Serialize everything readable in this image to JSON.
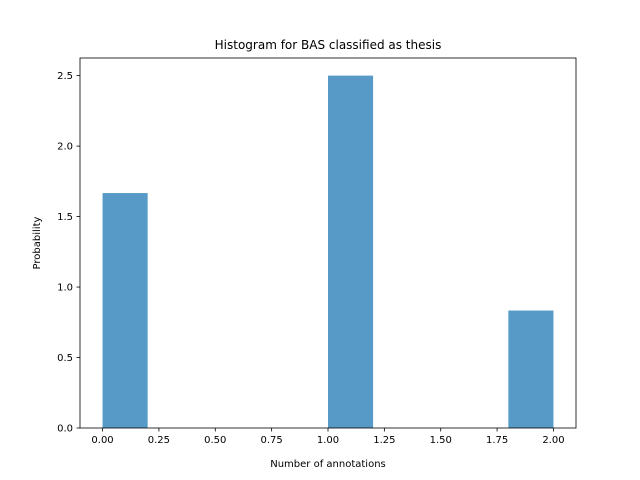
{
  "chart_data": {
    "type": "bar",
    "title": "Histogram for BAS classified as thesis",
    "xlabel": "Number of annotations",
    "ylabel": "Probability",
    "xlim": [
      -0.1,
      2.1
    ],
    "ylim": [
      0,
      2.625
    ],
    "xticks": [
      0.0,
      0.25,
      0.5,
      0.75,
      1.0,
      1.25,
      1.5,
      1.75,
      2.0
    ],
    "xtick_labels": [
      "0.00",
      "0.25",
      "0.50",
      "0.75",
      "1.00",
      "1.25",
      "1.50",
      "1.75",
      "2.00"
    ],
    "yticks": [
      0.0,
      0.5,
      1.0,
      1.5,
      2.0,
      2.5
    ],
    "ytick_labels": [
      "0.0",
      "0.5",
      "1.0",
      "1.5",
      "2.0",
      "2.5"
    ],
    "bins": [
      {
        "x0": 0.0,
        "x1": 0.2,
        "value": 1.6667
      },
      {
        "x0": 0.2,
        "x1": 0.4,
        "value": 0
      },
      {
        "x0": 0.4,
        "x1": 0.6,
        "value": 0
      },
      {
        "x0": 0.6,
        "x1": 0.8,
        "value": 0
      },
      {
        "x0": 0.8,
        "x1": 1.0,
        "value": 0
      },
      {
        "x0": 1.0,
        "x1": 1.2,
        "value": 2.5
      },
      {
        "x0": 1.2,
        "x1": 1.4,
        "value": 0
      },
      {
        "x0": 1.4,
        "x1": 1.6,
        "value": 0
      },
      {
        "x0": 1.6,
        "x1": 1.8,
        "value": 0
      },
      {
        "x0": 1.8,
        "x1": 2.0,
        "value": 0.8333
      }
    ],
    "bar_color": "#5799c7",
    "grid": false,
    "legend": false
  }
}
